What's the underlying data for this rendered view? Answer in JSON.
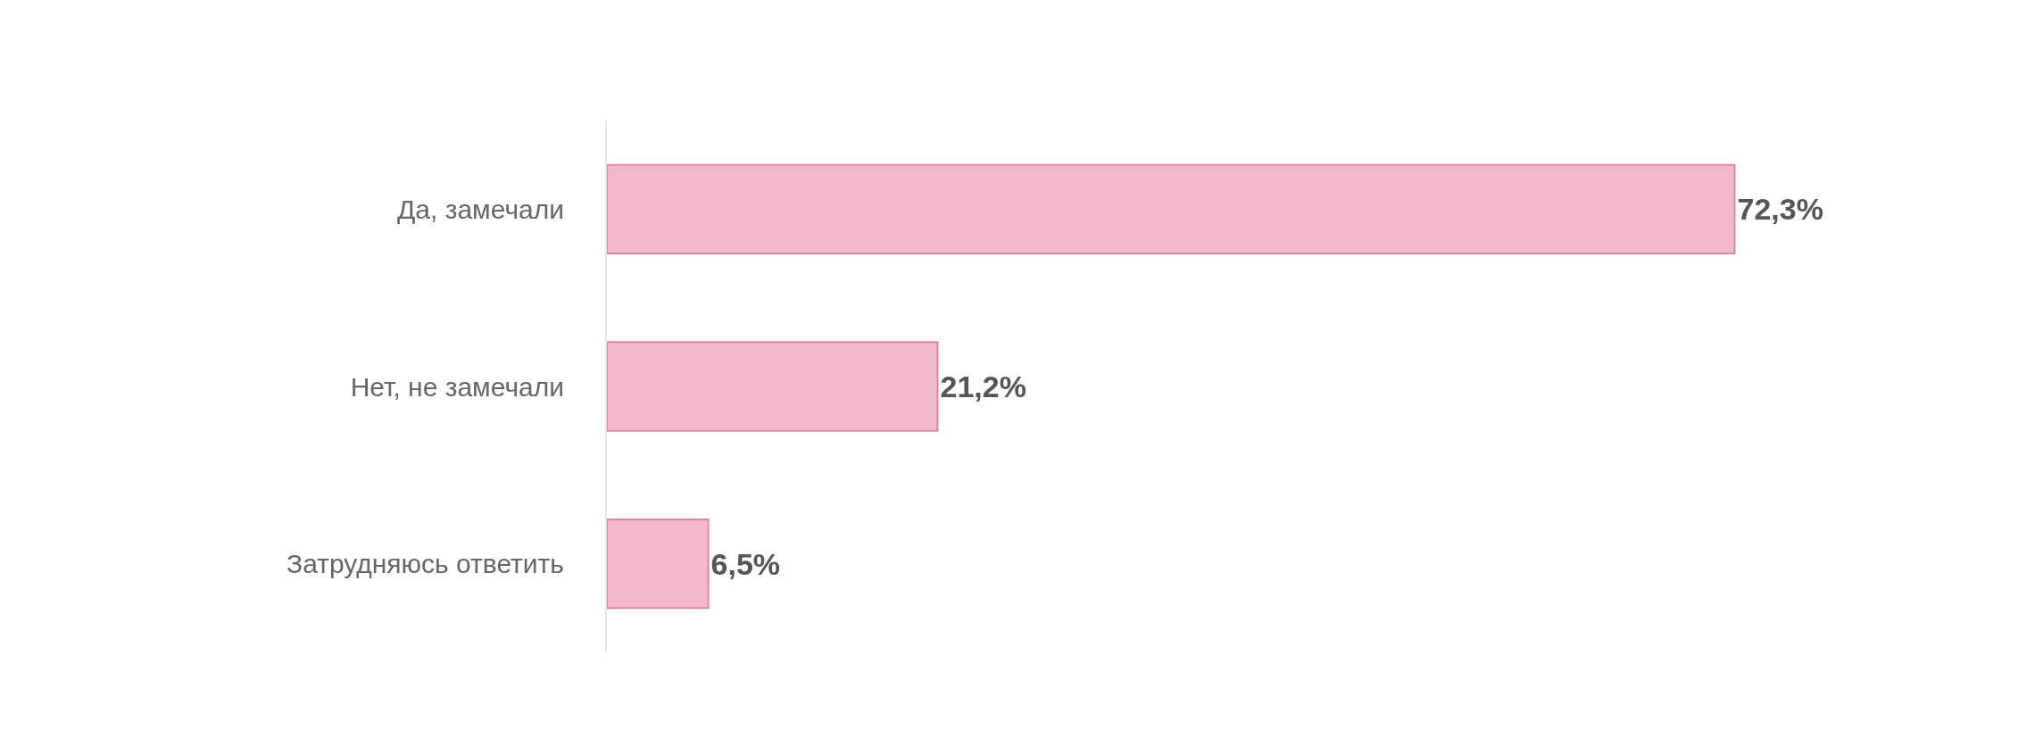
{
  "chart_data": {
    "type": "bar",
    "orientation": "horizontal",
    "categories": [
      "Да, замечали",
      "Нет, не замечали",
      "Затрудняюсь ответить"
    ],
    "values": [
      72.3,
      21.2,
      6.5
    ],
    "value_labels": [
      "72,3%",
      "21,2%",
      "6,5%"
    ],
    "color": "#f0b8c8",
    "legend": false
  }
}
